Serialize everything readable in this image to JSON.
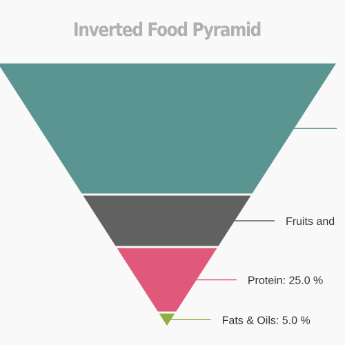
{
  "title": "Inverted Food Pyramid",
  "chart_data": {
    "type": "pyramid",
    "orientation": "inverted",
    "title": "Inverted Food Pyramid",
    "segments": [
      {
        "name": "",
        "value": 50.0,
        "label": "",
        "color": "#5b9592"
      },
      {
        "name": "Fruits and",
        "value": 20.0,
        "label": "Fruits and",
        "color": "#616161"
      },
      {
        "name": "Protein",
        "value": 25.0,
        "label": "Protein: 25.0 %",
        "color": "#e0587a"
      },
      {
        "name": "Fats & Oils",
        "value": 5.0,
        "label": "Fats & Oils: 5.0 %",
        "color": "#8fb03e"
      }
    ]
  }
}
